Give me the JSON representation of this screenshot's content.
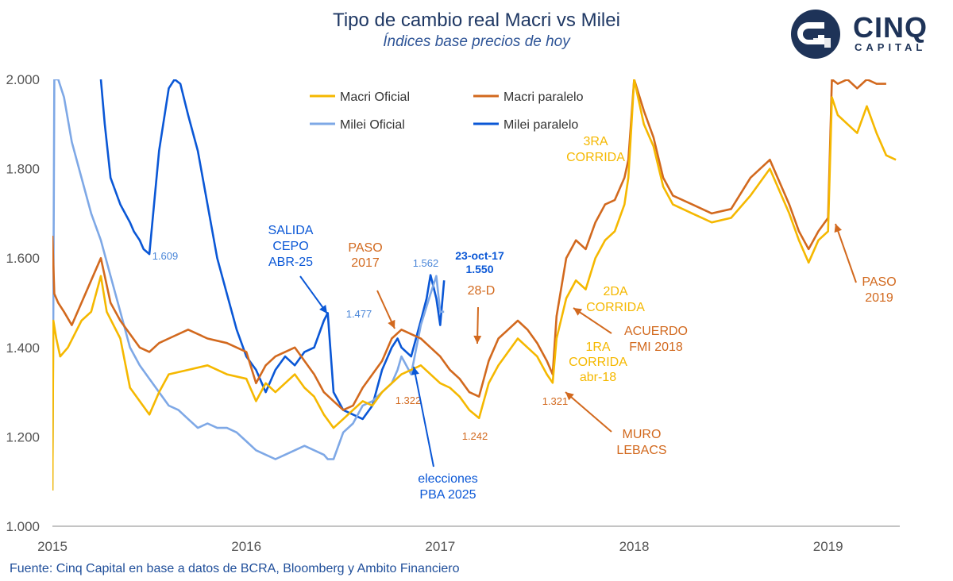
{
  "header": {
    "title": "Tipo de cambio real Macri vs Milei",
    "subtitle": "Índices base precios de hoy"
  },
  "logo": {
    "word": "CINQ",
    "sub": "CAPITAL",
    "icon": "cinq-logo-icon"
  },
  "source": "Fuente: Cinq Capital en base a datos de BCRA, Bloomberg y Ambito Financiero",
  "colors": {
    "macri_oficial": "#f5b800",
    "macri_paralelo": "#d2691e",
    "milei_oficial": "#7ea8e6",
    "milei_paralelo": "#0a57d6",
    "axis": "#888888",
    "tick_text": "#555555"
  },
  "chart_data": {
    "type": "line",
    "title": "Tipo de cambio real Macri vs Milei",
    "subtitle": "Índices base precios de hoy",
    "xlabel": "",
    "ylabel": "",
    "xlim": [
      2015,
      2019.37
    ],
    "ylim": [
      1000,
      2000
    ],
    "y_ticks": [
      1000,
      1200,
      1400,
      1600,
      1800,
      2000
    ],
    "y_tick_labels": [
      "1.000",
      "1.200",
      "1.400",
      "1.600",
      "1.800",
      "2.000"
    ],
    "x_ticks": [
      2015,
      2016,
      2017,
      2018,
      2019
    ],
    "x_tick_labels": [
      "2015",
      "2016",
      "2017",
      "2018",
      "2019"
    ],
    "grid": false,
    "legend_position": "top",
    "series": [
      {
        "name": "Macri Oficial",
        "color": "#f5b800",
        "x": [
          2015.0,
          2015.005,
          2015.02,
          2015.04,
          2015.08,
          2015.15,
          2015.2,
          2015.25,
          2015.28,
          2015.35,
          2015.4,
          2015.45,
          2015.5,
          2015.55,
          2015.6,
          2015.7,
          2015.8,
          2015.9,
          2016.0,
          2016.05,
          2016.1,
          2016.15,
          2016.2,
          2016.25,
          2016.3,
          2016.35,
          2016.4,
          2016.45,
          2016.5,
          2016.55,
          2016.6,
          2016.65,
          2016.7,
          2016.75,
          2016.8,
          2016.85,
          2016.9,
          2016.95,
          2017.0,
          2017.05,
          2017.1,
          2017.15,
          2017.2,
          2017.25,
          2017.3,
          2017.35,
          2017.4,
          2017.45,
          2017.5,
          2017.55,
          2017.58,
          2017.6,
          2017.65,
          2017.7,
          2017.75,
          2017.8,
          2017.85,
          2017.9,
          2017.95,
          2017.97,
          2018.0,
          2018.05,
          2018.1,
          2018.15,
          2018.2,
          2018.3,
          2018.4,
          2018.5,
          2018.6,
          2018.7,
          2018.8,
          2018.85,
          2018.9,
          2018.95,
          2019.0,
          2019.02,
          2019.05,
          2019.1,
          2019.15,
          2019.2,
          2019.25,
          2019.3,
          2019.35
        ],
        "values": [
          1080,
          1460,
          1420,
          1380,
          1400,
          1460,
          1480,
          1560,
          1480,
          1420,
          1310,
          1280,
          1250,
          1300,
          1340,
          1350,
          1360,
          1340,
          1330,
          1280,
          1320,
          1300,
          1320,
          1340,
          1310,
          1290,
          1250,
          1220,
          1240,
          1260,
          1280,
          1270,
          1300,
          1320,
          1340,
          1350,
          1360,
          1340,
          1320,
          1310,
          1290,
          1260,
          1242,
          1320,
          1360,
          1390,
          1420,
          1400,
          1380,
          1340,
          1321,
          1420,
          1510,
          1550,
          1530,
          1600,
          1640,
          1660,
          1720,
          1780,
          2000,
          1900,
          1850,
          1760,
          1720,
          1700,
          1680,
          1690,
          1740,
          1800,
          1700,
          1640,
          1590,
          1640,
          1660,
          1960,
          1920,
          1900,
          1880,
          1940,
          1880,
          1830,
          1820
        ]
      },
      {
        "name": "Macri paralelo",
        "color": "#d2691e",
        "x": [
          2015.0,
          2015.01,
          2015.03,
          2015.06,
          2015.1,
          2015.15,
          2015.2,
          2015.25,
          2015.3,
          2015.35,
          2015.4,
          2015.45,
          2015.5,
          2015.55,
          2015.6,
          2015.7,
          2015.8,
          2015.9,
          2016.0,
          2016.05,
          2016.1,
          2016.15,
          2016.2,
          2016.25,
          2016.3,
          2016.35,
          2016.4,
          2016.45,
          2016.5,
          2016.55,
          2016.6,
          2016.65,
          2016.7,
          2016.75,
          2016.8,
          2016.85,
          2016.9,
          2016.95,
          2017.0,
          2017.05,
          2017.1,
          2017.15,
          2017.2,
          2017.25,
          2017.3,
          2017.35,
          2017.4,
          2017.45,
          2017.5,
          2017.55,
          2017.58,
          2017.6,
          2017.65,
          2017.7,
          2017.75,
          2017.8,
          2017.85,
          2017.9,
          2017.95,
          2017.97,
          2018.0,
          2018.05,
          2018.1,
          2018.15,
          2018.2,
          2018.3,
          2018.4,
          2018.5,
          2018.6,
          2018.7,
          2018.8,
          2018.85,
          2018.9,
          2018.95,
          2019.0,
          2019.02,
          2019.05,
          2019.1,
          2019.15,
          2019.2,
          2019.25,
          2019.3
        ],
        "values": [
          1650,
          1520,
          1500,
          1480,
          1450,
          1500,
          1550,
          1600,
          1500,
          1460,
          1430,
          1400,
          1390,
          1410,
          1420,
          1440,
          1420,
          1410,
          1390,
          1320,
          1360,
          1380,
          1390,
          1400,
          1370,
          1340,
          1300,
          1280,
          1260,
          1270,
          1310,
          1340,
          1370,
          1420,
          1440,
          1430,
          1420,
          1400,
          1380,
          1350,
          1330,
          1300,
          1290,
          1370,
          1420,
          1440,
          1460,
          1440,
          1410,
          1370,
          1340,
          1470,
          1600,
          1640,
          1620,
          1680,
          1720,
          1730,
          1780,
          1820,
          2000,
          1930,
          1870,
          1780,
          1740,
          1720,
          1700,
          1710,
          1780,
          1820,
          1720,
          1660,
          1620,
          1660,
          1690,
          2000,
          1990,
          2000,
          1980,
          2000,
          1990,
          1990
        ]
      },
      {
        "name": "Milei Oficial",
        "color": "#7ea8e6",
        "x": [
          2015.0,
          2015.005,
          2015.01,
          2015.03,
          2015.06,
          2015.1,
          2015.15,
          2015.2,
          2015.25,
          2015.3,
          2015.35,
          2015.4,
          2015.45,
          2015.5,
          2015.55,
          2015.6,
          2015.65,
          2015.7,
          2015.75,
          2015.8,
          2015.85,
          2015.9,
          2015.95,
          2016.0,
          2016.05,
          2016.1,
          2016.15,
          2016.2,
          2016.25,
          2016.3,
          2016.35,
          2016.4,
          2016.42,
          2016.45,
          2016.5,
          2016.55,
          2016.6,
          2016.65,
          2016.7,
          2016.75,
          2016.78,
          2016.8,
          2016.85,
          2016.9,
          2016.95,
          2016.98,
          2017.0,
          2017.02
        ],
        "values": [
          1080,
          1500,
          2000,
          2000,
          1960,
          1860,
          1780,
          1700,
          1640,
          1560,
          1480,
          1400,
          1360,
          1330,
          1300,
          1270,
          1260,
          1240,
          1220,
          1230,
          1220,
          1220,
          1210,
          1190,
          1170,
          1160,
          1150,
          1160,
          1170,
          1180,
          1170,
          1160,
          1150,
          1150,
          1210,
          1230,
          1270,
          1280,
          1300,
          1320,
          1350,
          1380,
          1340,
          1450,
          1520,
          1560,
          1480,
          1480
        ]
      },
      {
        "name": "Milei paralelo",
        "color": "#0a57d6",
        "x": [
          2015.25,
          2015.27,
          2015.3,
          2015.35,
          2015.4,
          2015.42,
          2015.45,
          2015.47,
          2015.5,
          2015.55,
          2015.6,
          2015.63,
          2015.66,
          2015.7,
          2015.75,
          2015.8,
          2015.85,
          2015.9,
          2015.95,
          2016.0,
          2016.05,
          2016.08,
          2016.1,
          2016.15,
          2016.2,
          2016.25,
          2016.3,
          2016.35,
          2016.4,
          2016.42,
          2016.45,
          2016.5,
          2016.55,
          2016.6,
          2016.65,
          2016.7,
          2016.75,
          2016.78,
          2016.8,
          2016.85,
          2016.9,
          2016.93,
          2016.95,
          2016.98,
          2017.0,
          2017.02
        ],
        "values": [
          2000,
          1900,
          1780,
          1720,
          1680,
          1660,
          1640,
          1620,
          1609,
          1840,
          1980,
          2000,
          1990,
          1920,
          1840,
          1720,
          1600,
          1520,
          1440,
          1380,
          1350,
          1320,
          1300,
          1350,
          1380,
          1360,
          1390,
          1400,
          1460,
          1477,
          1300,
          1260,
          1250,
          1240,
          1270,
          1350,
          1400,
          1420,
          1400,
          1380,
          1460,
          1510,
          1562,
          1510,
          1450,
          1550
        ]
      }
    ],
    "annotations": [
      {
        "text": "1.609",
        "series": "Milei paralelo"
      },
      {
        "text": "1.477",
        "series": "Milei paralelo"
      },
      {
        "text": "1.562",
        "series": "Milei Oficial"
      },
      {
        "text": "1.322",
        "series": "Macri paralelo"
      },
      {
        "text": "1.242",
        "series": "Macri paralelo"
      },
      {
        "text": "1.321",
        "series": "Macri paralelo"
      },
      {
        "text": "SALIDA CEPO ABR-25",
        "series": "Milei paralelo"
      },
      {
        "text": "PASO 2017",
        "series": "Macri paralelo"
      },
      {
        "text": "23-oct-17 1.550",
        "series": "Milei paralelo"
      },
      {
        "text": "28-D",
        "series": "Macri paralelo"
      },
      {
        "text": "elecciones PBA 2025",
        "series": "Milei paralelo"
      },
      {
        "text": "3RA CORRIDA",
        "series": "Macri Oficial"
      },
      {
        "text": "2DA CORRIDA",
        "series": "Macri Oficial"
      },
      {
        "text": "ACUERDO FMI 2018",
        "series": "Macri paralelo"
      },
      {
        "text": "1RA CORRIDA abr-18",
        "series": "Macri Oficial"
      },
      {
        "text": "MURO LEBACS",
        "series": "Macri paralelo"
      },
      {
        "text": "PASO 2019",
        "series": "Macri paralelo"
      }
    ]
  },
  "annotation_text": {
    "v1609": "1.609",
    "v1477": "1.477",
    "v1562": "1.562",
    "v1322": "1.322",
    "v1242": "1.242",
    "v1321": "1.321",
    "salida": [
      "SALIDA",
      "CEPO",
      "ABR-25"
    ],
    "paso2017": [
      "PASO",
      "2017"
    ],
    "oct17": [
      "23-oct-17",
      "1.550"
    ],
    "d28": "28-D",
    "elecciones": [
      "elecciones",
      "PBA 2025"
    ],
    "corrida3": [
      "3RA",
      "CORRIDA"
    ],
    "corrida2": [
      "2DA",
      "CORRIDA"
    ],
    "fmi": [
      "ACUERDO",
      "FMI 2018"
    ],
    "corrida1": [
      "1RA",
      "CORRIDA",
      "abr-18"
    ],
    "lebacs": [
      "MURO",
      "LEBACS"
    ],
    "paso2019": [
      "PASO",
      "2019"
    ]
  }
}
